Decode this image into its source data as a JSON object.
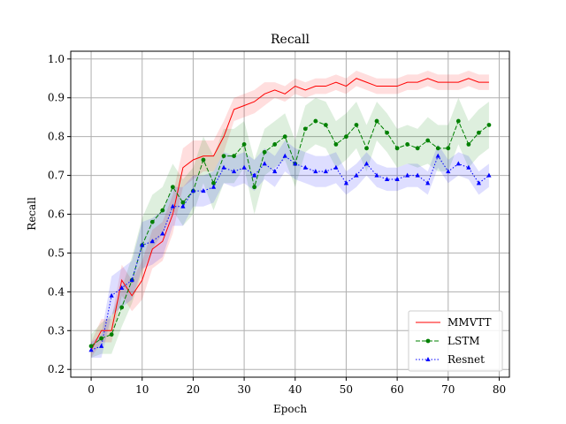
{
  "chart_data": {
    "type": "line",
    "title": "Recall",
    "xlabel": "Epoch",
    "ylabel": "Recall",
    "xlim": [
      -4,
      82
    ],
    "ylim": [
      0.18,
      1.02
    ],
    "xticks": [
      0,
      10,
      20,
      30,
      40,
      50,
      60,
      70,
      80
    ],
    "yticks": [
      0.2,
      0.3,
      0.4,
      0.5,
      0.6,
      0.7,
      0.8,
      0.9,
      1.0
    ],
    "xtick_labels": [
      "0",
      "10",
      "20",
      "30",
      "40",
      "50",
      "60",
      "70",
      "80"
    ],
    "ytick_labels": [
      "0.2",
      "0.3",
      "0.4",
      "0.5",
      "0.6",
      "0.7",
      "0.8",
      "0.9",
      "1.0"
    ],
    "grid": true,
    "legend_position": "lower-right",
    "x": [
      0,
      2,
      4,
      6,
      8,
      10,
      12,
      14,
      16,
      18,
      20,
      22,
      24,
      26,
      28,
      30,
      32,
      34,
      36,
      38,
      40,
      42,
      44,
      46,
      48,
      50,
      52,
      54,
      56,
      58,
      60,
      62,
      64,
      66,
      68,
      70,
      72,
      74,
      76,
      78
    ],
    "series": [
      {
        "name": "MMVTT",
        "color": "#ff0000",
        "style": "solid",
        "marker": "none",
        "values": [
          0.25,
          0.3,
          0.3,
          0.43,
          0.39,
          0.43,
          0.51,
          0.53,
          0.6,
          0.72,
          0.74,
          0.75,
          0.75,
          0.8,
          0.87,
          0.88,
          0.89,
          0.91,
          0.92,
          0.91,
          0.93,
          0.92,
          0.93,
          0.93,
          0.94,
          0.93,
          0.95,
          0.94,
          0.93,
          0.93,
          0.93,
          0.94,
          0.94,
          0.95,
          0.94,
          0.94,
          0.94,
          0.95,
          0.94,
          0.94
        ],
        "band": [
          0.02,
          0.03,
          0.03,
          0.04,
          0.04,
          0.05,
          0.05,
          0.05,
          0.05,
          0.05,
          0.05,
          0.04,
          0.04,
          0.04,
          0.03,
          0.03,
          0.03,
          0.03,
          0.02,
          0.02,
          0.02,
          0.02,
          0.02,
          0.02,
          0.02,
          0.02,
          0.02,
          0.02,
          0.02,
          0.02,
          0.02,
          0.02,
          0.02,
          0.02,
          0.02,
          0.02,
          0.02,
          0.02,
          0.02,
          0.02
        ]
      },
      {
        "name": "LSTM",
        "color": "#008000",
        "style": "dashed",
        "marker": "circle",
        "values": [
          0.26,
          0.28,
          0.29,
          0.36,
          0.43,
          0.52,
          0.58,
          0.61,
          0.67,
          0.63,
          0.66,
          0.74,
          0.68,
          0.75,
          0.75,
          0.78,
          0.67,
          0.76,
          0.78,
          0.8,
          0.73,
          0.82,
          0.84,
          0.83,
          0.78,
          0.8,
          0.83,
          0.77,
          0.84,
          0.81,
          0.77,
          0.78,
          0.77,
          0.79,
          0.77,
          0.77,
          0.84,
          0.78,
          0.81,
          0.83
        ],
        "band": [
          0.03,
          0.04,
          0.05,
          0.05,
          0.06,
          0.07,
          0.07,
          0.06,
          0.06,
          0.06,
          0.06,
          0.06,
          0.07,
          0.07,
          0.07,
          0.06,
          0.07,
          0.06,
          0.06,
          0.06,
          0.06,
          0.06,
          0.06,
          0.06,
          0.06,
          0.06,
          0.06,
          0.06,
          0.05,
          0.05,
          0.05,
          0.05,
          0.05,
          0.06,
          0.06,
          0.06,
          0.06,
          0.06,
          0.06,
          0.06
        ]
      },
      {
        "name": "Resnet",
        "color": "#0000ff",
        "style": "dotted",
        "marker": "triangle",
        "values": [
          0.25,
          0.26,
          0.39,
          0.41,
          0.43,
          0.52,
          0.53,
          0.55,
          0.62,
          0.62,
          0.66,
          0.66,
          0.67,
          0.72,
          0.71,
          0.72,
          0.7,
          0.73,
          0.71,
          0.75,
          0.73,
          0.72,
          0.71,
          0.71,
          0.72,
          0.68,
          0.7,
          0.73,
          0.7,
          0.69,
          0.69,
          0.7,
          0.7,
          0.68,
          0.75,
          0.71,
          0.73,
          0.72,
          0.68,
          0.7
        ],
        "band": [
          0.02,
          0.03,
          0.05,
          0.05,
          0.05,
          0.06,
          0.06,
          0.06,
          0.05,
          0.05,
          0.04,
          0.04,
          0.04,
          0.04,
          0.04,
          0.04,
          0.04,
          0.04,
          0.04,
          0.04,
          0.04,
          0.04,
          0.04,
          0.04,
          0.04,
          0.03,
          0.03,
          0.03,
          0.03,
          0.03,
          0.03,
          0.03,
          0.03,
          0.03,
          0.03,
          0.03,
          0.03,
          0.03,
          0.03,
          0.03
        ]
      }
    ]
  }
}
